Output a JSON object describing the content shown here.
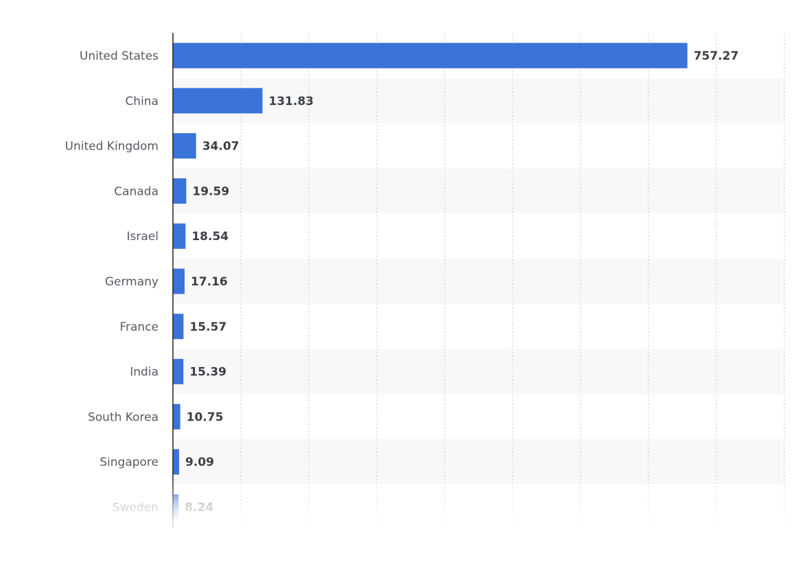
{
  "chart_data": {
    "type": "bar",
    "orientation": "horizontal",
    "categories": [
      "United States",
      "China",
      "United Kingdom",
      "Canada",
      "Israel",
      "Germany",
      "France",
      "India",
      "South Korea",
      "Singapore",
      "Sweden"
    ],
    "values": [
      757.27,
      131.83,
      34.07,
      19.59,
      18.54,
      17.16,
      15.57,
      15.39,
      10.75,
      9.09,
      8.24
    ],
    "value_labels": [
      "757.27",
      "131.83",
      "34.07",
      "19.59",
      "18.54",
      "17.16",
      "15.57",
      "15.39",
      "10.75",
      "9.09",
      "8.24"
    ],
    "title": "",
    "xlabel": "",
    "ylabel": "",
    "xlim": [
      0,
      900
    ],
    "grid": "vertical dotted",
    "legend": "none",
    "bar_color": "#3b74d8",
    "row_stripe_color": "#f8f8f8",
    "gridline_color": "#c8c8c8",
    "axis_color": "#222222"
  }
}
